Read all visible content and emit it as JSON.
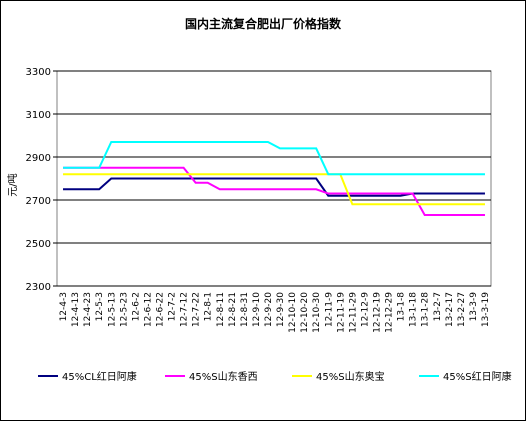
{
  "chart_data": {
    "type": "line",
    "title": "国内主流复合肥出厂价格指数",
    "y_label": "元/吨",
    "categories": [
      "12-4-3",
      "12-4-13",
      "12-4-23",
      "12-5-3",
      "12-5-13",
      "12-5-23",
      "12-6-2",
      "12-6-12",
      "12-6-22",
      "12-7-2",
      "12-7-12",
      "12-7-22",
      "12-8-1",
      "12-8-11",
      "12-8-21",
      "12-8-31",
      "12-9-10",
      "12-9-20",
      "12-9-30",
      "12-10-10",
      "12-10-20",
      "12-10-30",
      "12-11-9",
      "12-11-19",
      "12-11-29",
      "12-12-9",
      "12-12-19",
      "12-12-29",
      "13-1-8",
      "13-1-18",
      "13-1-28",
      "13-2-7",
      "13-2-17",
      "13-2-27",
      "13-3-9",
      "13-3-19"
    ],
    "series": [
      {
        "name": "45%CL红日阿康",
        "color": "#000080",
        "values": [
          2750,
          2750,
          2750,
          2750,
          2800,
          2800,
          2800,
          2800,
          2800,
          2800,
          2800,
          2800,
          2800,
          2800,
          2800,
          2800,
          2800,
          2800,
          2800,
          2800,
          2800,
          2800,
          2720,
          2720,
          2720,
          2720,
          2720,
          2720,
          2720,
          2730,
          2730,
          2730,
          2730,
          2730,
          2730,
          2730
        ]
      },
      {
        "name": "45%S山东香西",
        "color": "#ff00ff",
        "values": [
          2850,
          2850,
          2850,
          2850,
          2850,
          2850,
          2850,
          2850,
          2850,
          2850,
          2850,
          2780,
          2780,
          2750,
          2750,
          2750,
          2750,
          2750,
          2750,
          2750,
          2750,
          2750,
          2730,
          2730,
          2730,
          2730,
          2730,
          2730,
          2730,
          2730,
          2630,
          2630,
          2630,
          2630,
          2630,
          2630
        ]
      },
      {
        "name": "45%S山东奥宝",
        "color": "#ffff00",
        "values": [
          2820,
          2820,
          2820,
          2820,
          2820,
          2820,
          2820,
          2820,
          2820,
          2820,
          2820,
          2820,
          2820,
          2820,
          2820,
          2820,
          2820,
          2820,
          2820,
          2820,
          2820,
          2820,
          2820,
          2820,
          2680,
          2680,
          2680,
          2680,
          2680,
          2680,
          2680,
          2680,
          2680,
          2680,
          2680,
          2680
        ]
      },
      {
        "name": "45%S红日阿康",
        "color": "#00ffff",
        "values": [
          2850,
          2850,
          2850,
          2850,
          2970,
          2970,
          2970,
          2970,
          2970,
          2970,
          2970,
          2970,
          2970,
          2970,
          2970,
          2970,
          2970,
          2970,
          2940,
          2940,
          2940,
          2940,
          2820,
          2820,
          2820,
          2820,
          2820,
          2820,
          2820,
          2820,
          2820,
          2820,
          2820,
          2820,
          2820,
          2820
        ]
      }
    ],
    "ylim": [
      2300,
      3300
    ],
    "yticks": [
      2300,
      2500,
      2700,
      2900,
      3100,
      3300
    ],
    "grid": true
  }
}
